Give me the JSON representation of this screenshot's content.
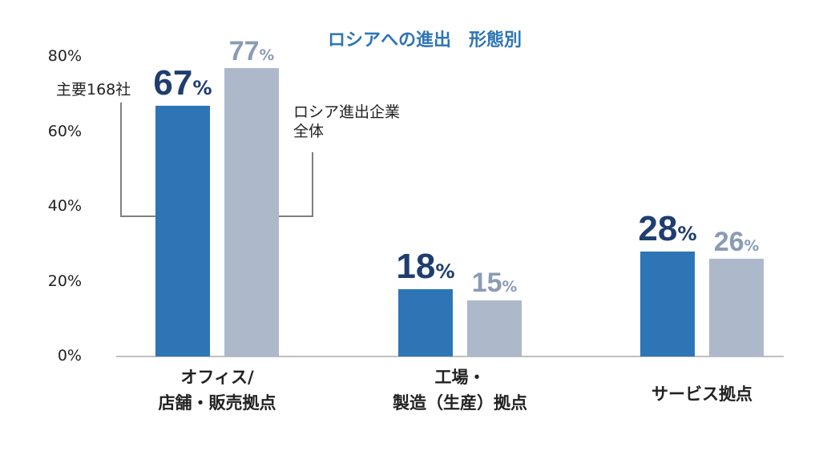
{
  "chart_data": {
    "type": "bar",
    "title": "ロシアへの進出　形態別",
    "categories": [
      [
        "オフィス/",
        "店舗・販売拠点"
      ],
      [
        "工場・",
        "製造（生産）拠点"
      ],
      [
        "サービス拠点"
      ]
    ],
    "series": [
      {
        "name": "主要168社",
        "values": [
          67,
          18,
          28
        ],
        "color": "#2e75b6"
      },
      {
        "name": "ロシア進出企業全体",
        "values": [
          77,
          15,
          26
        ],
        "color": "#adb9ca"
      }
    ],
    "value_suffix": "%",
    "ylim": [
      0,
      80
    ],
    "yticks": [
      "0%",
      "20%",
      "40%",
      "60%",
      "80%"
    ],
    "xlabel": "",
    "ylabel": "",
    "grid": false,
    "legend": "callout-annotations",
    "annotations": {
      "primary": [
        "主要168社"
      ],
      "secondary": [
        "ロシア進出企業",
        "全体"
      ]
    },
    "label_colors": {
      "primary": "#1f3e6e",
      "secondary": "#8a9bb5"
    }
  }
}
